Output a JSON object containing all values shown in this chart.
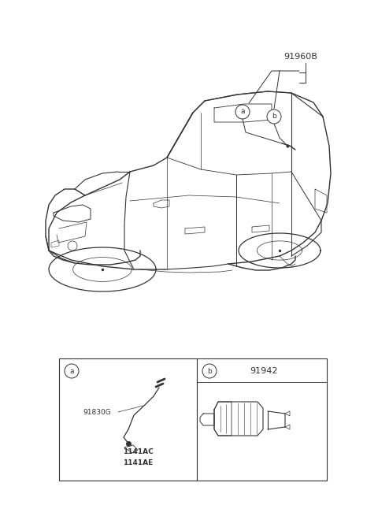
{
  "bg_color": "#ffffff",
  "line_color": "#333333",
  "fig_width": 4.8,
  "fig_height": 6.55,
  "dpi": 100,
  "part_label_91960B": "91960B",
  "part_label_91830G": "91830G",
  "part_label_1141AC": "1141AC",
  "part_label_1141AE": "1141AE",
  "part_label_91942": "91942",
  "circle_a_label": "a",
  "circle_b_label": "b",
  "font_size_label": 8,
  "font_size_part": 7.5,
  "font_size_small": 6.5
}
